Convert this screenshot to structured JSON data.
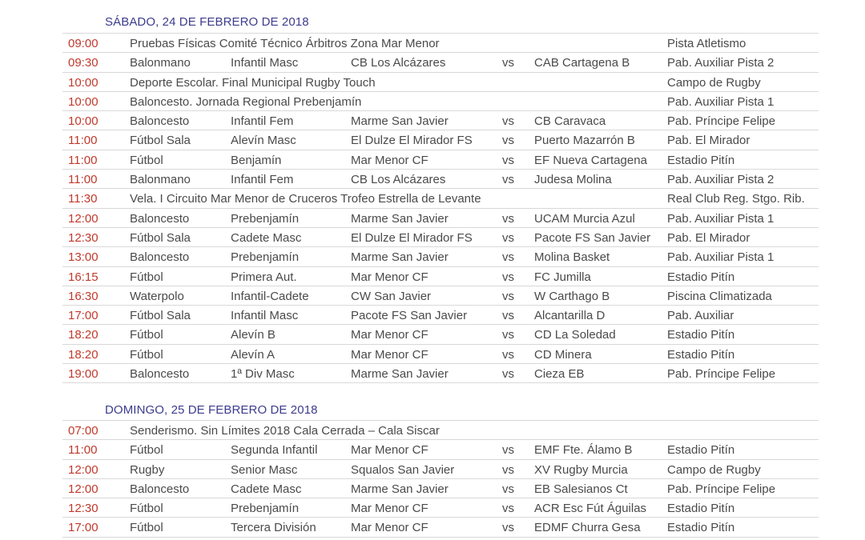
{
  "days": [
    {
      "title": "SÁBADO, 24 DE FEBRERO DE 2018",
      "rows": [
        {
          "time": "09:00",
          "event": "Pruebas Físicas Comité Técnico Árbitros Zona Mar Menor",
          "venue": "Pista Atletismo"
        },
        {
          "time": "09:30",
          "sport": "Balonmano",
          "category": "Infantil Masc",
          "home": "CB Los Alcázares",
          "vs": "vs",
          "away": "CAB Cartagena B",
          "venue": "Pab. Auxiliar Pista 2"
        },
        {
          "time": "10:00",
          "event": "Deporte Escolar. Final Municipal Rugby Touch",
          "venue": "Campo de Rugby"
        },
        {
          "time": "10:00",
          "event": "Baloncesto. Jornada Regional Prebenjamín",
          "venue": "Pab. Auxiliar Pista 1"
        },
        {
          "time": "10:00",
          "sport": "Baloncesto",
          "category": "Infantil Fem",
          "home": "Marme San Javier",
          "vs": "vs",
          "away": "CB Caravaca",
          "venue": "Pab. Príncipe Felipe"
        },
        {
          "time": "11:00",
          "sport": "Fútbol Sala",
          "category": "Alevín Masc",
          "home": "El Dulze El Mirador FS",
          "vs": "vs",
          "away": "Puerto Mazarrón B",
          "venue": "Pab. El Mirador"
        },
        {
          "time": "11:00",
          "sport": "Fútbol",
          "category": "Benjamín",
          "home": "Mar Menor CF",
          "vs": "vs",
          "away": "EF Nueva Cartagena",
          "venue": "Estadio Pitín"
        },
        {
          "time": "11:00",
          "sport": "Balonmano",
          "category": "Infantil Fem",
          "home": "CB Los Alcázares",
          "vs": "vs",
          "away": "Judesa Molina",
          "venue": "Pab. Auxiliar Pista 2"
        },
        {
          "time": "11:30",
          "event": "Vela. I Circuito Mar Menor de Cruceros Trofeo Estrella de Levante",
          "venue": "Real Club Reg. Stgo. Rib."
        },
        {
          "time": "12:00",
          "sport": "Baloncesto",
          "category": "Prebenjamín",
          "home": "Marme San Javier",
          "vs": "vs",
          "away": "UCAM Murcia Azul",
          "venue": "Pab. Auxiliar Pista 1"
        },
        {
          "time": "12:30",
          "sport": "Fútbol Sala",
          "category": "Cadete Masc",
          "home": "El Dulze El Mirador FS",
          "vs": "vs",
          "away": "Pacote FS San Javier",
          "venue": "Pab. El Mirador"
        },
        {
          "time": "13:00",
          "sport": "Baloncesto",
          "category": "Prebenjamín",
          "home": "Marme San Javier",
          "vs": "vs",
          "away": "Molina Basket",
          "venue": "Pab. Auxiliar Pista 1"
        },
        {
          "time": "16:15",
          "sport": "Fútbol",
          "category": "Primera Aut.",
          "home": "Mar Menor CF",
          "vs": "vs",
          "away": "FC Jumilla",
          "venue": "Estadio Pitín"
        },
        {
          "time": "16:30",
          "sport": "Waterpolo",
          "category": "Infantil-Cadete",
          "home": "CW San Javier",
          "vs": "vs",
          "away": "W Carthago B",
          "venue": "Piscina Climatizada"
        },
        {
          "time": "17:00",
          "sport": "Fútbol Sala",
          "category": "Infantil Masc",
          "home": "Pacote FS San Javier",
          "vs": "vs",
          "away": "Alcantarilla D",
          "venue": "Pab. Auxiliar"
        },
        {
          "time": "18:20",
          "sport": "Fútbol",
          "category": "Alevín B",
          "home": "Mar Menor CF",
          "vs": "vs",
          "away": "CD La Soledad",
          "venue": "Estadio Pitín"
        },
        {
          "time": "18:20",
          "sport": "Fútbol",
          "category": "Alevín A",
          "home": "Mar Menor CF",
          "vs": "vs",
          "away": "CD Minera",
          "venue": "Estadio Pitín"
        },
        {
          "time": "19:00",
          "sport": "Baloncesto",
          "category": "1ª Div Masc",
          "home": "Marme San Javier",
          "vs": "vs",
          "away": "Cieza EB",
          "venue": "Pab. Príncipe Felipe"
        }
      ]
    },
    {
      "title": "DOMINGO, 25 DE FEBRERO DE 2018",
      "rows": [
        {
          "time": "07:00",
          "event": "Senderismo. Sin Límites 2018   Cala Cerrada – Cala Siscar"
        },
        {
          "time": "11:00",
          "sport": "Fútbol",
          "category": "Segunda Infantil",
          "home": "Mar Menor CF",
          "vs": "vs",
          "away": "EMF Fte. Álamo B",
          "venue": "Estadio Pitín"
        },
        {
          "time": "12:00",
          "sport": "Rugby",
          "category": "Senior Masc",
          "home": "Squalos San Javier",
          "vs": "vs",
          "away": "XV Rugby Murcia",
          "venue": "Campo de Rugby"
        },
        {
          "time": "12:00",
          "sport": "Baloncesto",
          "category": "Cadete Masc",
          "home": "Marme San Javier",
          "vs": "vs",
          "away": "EB Salesianos Ct",
          "venue": "Pab. Príncipe Felipe"
        },
        {
          "time": "12:30",
          "sport": "Fútbol",
          "category": "Prebenjamín",
          "home": "Mar Menor CF",
          "vs": "vs",
          "away": "ACR Esc Fút Águilas",
          "venue": "Estadio Pitín"
        },
        {
          "time": "17:00",
          "sport": "Fútbol",
          "category": "Tercera División",
          "home": "Mar Menor CF",
          "vs": "vs",
          "away": "EDMF Churra Gesa",
          "venue": "Estadio Pitín"
        }
      ]
    }
  ]
}
